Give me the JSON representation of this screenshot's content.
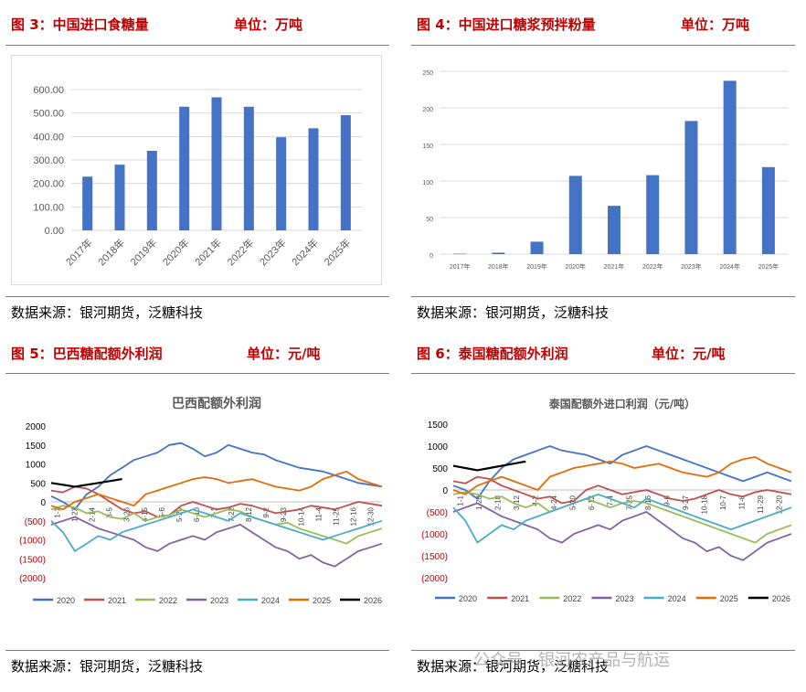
{
  "panels": [
    {
      "fig_label": "图 3：中国进口食糖量",
      "unit": "单位：万吨",
      "source": "数据来源：银河期货，泛糖科技"
    },
    {
      "fig_label": "图 4：中国进口糖浆预拌粉量",
      "unit": "单位：万吨",
      "source": "数据来源：银河期货，泛糖科技"
    },
    {
      "fig_label": "图 5：巴西糖配额外利润",
      "unit": "单位：元/吨",
      "source": "数据来源：银河期货，泛糖科技"
    },
    {
      "fig_label": "图 6：泰国糖配额外利润",
      "unit": "单位：元/吨",
      "source": "数据来源：银河期货，泛糖科技"
    }
  ],
  "watermark": "公众号 · 银河农产品与航运",
  "colors": {
    "bar": "#4472c4",
    "s2020": "#4472c4",
    "s2021": "#c0504d",
    "s2022": "#9bbb59",
    "s2023": "#8064a2",
    "s2024": "#4bacc6",
    "s2025": "#e36c0a",
    "s2026": "#000000"
  },
  "chart_data": [
    {
      "type": "bar",
      "categories": [
        "2017年",
        "2018年",
        "2019年",
        "2020年",
        "2021年",
        "2022年",
        "2023年",
        "2024年",
        "2025年"
      ],
      "values": [
        229,
        280,
        339,
        527,
        567,
        527,
        397,
        435,
        491
      ],
      "ylim": [
        0,
        600
      ],
      "yticks": [
        "0.00",
        "100.00",
        "200.00",
        "300.00",
        "400.00",
        "500.00",
        "600.00"
      ],
      "ytick_values": [
        0,
        100,
        200,
        300,
        400,
        500,
        600
      ]
    },
    {
      "type": "bar",
      "categories": [
        "2017年",
        "2018年",
        "2019年",
        "2020年",
        "2021年",
        "2022年",
        "2023年",
        "2024年",
        "2025年"
      ],
      "values": [
        0.5,
        2,
        17,
        107,
        66,
        108,
        182,
        237,
        119
      ],
      "ylim": [
        0,
        250
      ],
      "yticks": [
        "0",
        "50",
        "100",
        "150",
        "200",
        "250"
      ],
      "ytick_values": [
        0,
        50,
        100,
        150,
        200,
        250
      ]
    },
    {
      "type": "line",
      "title": "巴西配额外利润",
      "ylim": [
        -2000,
        2000
      ],
      "yticks": [
        "2000",
        "1500",
        "1000",
        "500",
        "0",
        "(500)",
        "(1000)",
        "(1500)",
        "(2000)"
      ],
      "ytick_values": [
        2000,
        1500,
        1000,
        500,
        0,
        -500,
        -1000,
        -1500,
        -2000
      ],
      "xticks": [
        "1-1",
        "1-23",
        "2-14",
        "3-5",
        "3-26",
        "4-15",
        "5-6",
        "5-20",
        "6-10",
        "7-1",
        "7-22",
        "8-12",
        "9-2",
        "9-23",
        "10-14",
        "11-4",
        "11-25",
        "12-16",
        "12-30"
      ],
      "series": [
        {
          "name": "2020",
          "color_key": "s2020",
          "values": [
            150,
            0,
            -200,
            200,
            400,
            700,
            900,
            1100,
            1200,
            1300,
            1500,
            1550,
            1400,
            1200,
            1300,
            1500,
            1400,
            1300,
            1250,
            1100,
            1000,
            900,
            850,
            800,
            700,
            600,
            500,
            450,
            400
          ]
        },
        {
          "name": "2021",
          "color_key": "s2021",
          "values": [
            300,
            250,
            400,
            350,
            200,
            0,
            -200,
            -300,
            -250,
            -400,
            -350,
            -100,
            0,
            -100,
            -200,
            -150,
            -50,
            -100,
            -200,
            -300,
            -250,
            -200,
            -100,
            -150,
            -200,
            -100,
            0,
            -50,
            -100
          ]
        },
        {
          "name": "2022",
          "color_key": "s2022",
          "values": [
            -200,
            -100,
            -150,
            -300,
            -250,
            -400,
            -450,
            -300,
            -500,
            -400,
            -350,
            -200,
            -300,
            -400,
            -300,
            -200,
            -250,
            -400,
            -500,
            -600,
            -550,
            -700,
            -800,
            -900,
            -1000,
            -1100,
            -900,
            -800,
            -700
          ]
        },
        {
          "name": "2023",
          "color_key": "s2023",
          "values": [
            -600,
            -500,
            -400,
            -550,
            -700,
            -800,
            -900,
            -1000,
            -1200,
            -1300,
            -1100,
            -1000,
            -900,
            -1000,
            -800,
            -700,
            -600,
            -800,
            -1000,
            -1200,
            -1300,
            -1500,
            -1400,
            -1600,
            -1700,
            -1500,
            -1300,
            -1200,
            -1100
          ]
        },
        {
          "name": "2024",
          "color_key": "s2024",
          "values": [
            -500,
            -800,
            -1300,
            -1100,
            -900,
            -1000,
            -800,
            -700,
            -600,
            -500,
            -400,
            -300,
            -200,
            -300,
            -400,
            -500,
            -300,
            -400,
            -500,
            -600,
            -700,
            -800,
            -900,
            -1000,
            -900,
            -800,
            -700,
            -600,
            -500
          ]
        },
        {
          "name": "2025",
          "color_key": "s2025",
          "values": [
            -100,
            -200,
            0,
            100,
            200,
            100,
            0,
            -100,
            200,
            300,
            400,
            500,
            600,
            650,
            600,
            500,
            550,
            600,
            500,
            400,
            350,
            300,
            400,
            600,
            700,
            800,
            600,
            500,
            400
          ]
        },
        {
          "name": "2026",
          "color_key": "s2026",
          "values": [
            500,
            450,
            400,
            450,
            500,
            550,
            600
          ]
        }
      ]
    },
    {
      "type": "line",
      "title": "泰国配额外进口利润（元/吨）",
      "ylim": [
        -2000,
        1500
      ],
      "yticks": [
        "1500",
        "1000",
        "500",
        "0",
        "(500)",
        "(1000)",
        "(1500)",
        "(2000)"
      ],
      "ytick_values": [
        1500,
        1000,
        500,
        0,
        -500,
        -1000,
        -1500,
        -2000
      ],
      "xticks": [
        "1-1",
        "1-20",
        "2-18",
        "3-12",
        "4-2",
        "4-24",
        "5-20",
        "6-12",
        "7-4",
        "7-25",
        "8-16",
        "9-6",
        "9-27",
        "10-18",
        "10-7",
        "11-8",
        "11-29",
        "12-20"
      ],
      "series": [
        {
          "name": "2020",
          "color_key": "s2020",
          "values": [
            100,
            0,
            -200,
            200,
            500,
            700,
            800,
            900,
            1000,
            900,
            850,
            800,
            700,
            600,
            800,
            900,
            1000,
            900,
            800,
            700,
            600,
            500,
            400,
            300,
            200,
            300,
            400,
            300,
            200
          ]
        },
        {
          "name": "2021",
          "color_key": "s2021",
          "values": [
            200,
            150,
            300,
            250,
            100,
            0,
            -100,
            -200,
            -150,
            -300,
            -250,
            0,
            100,
            0,
            -100,
            -50,
            0,
            -100,
            -200,
            -250,
            -200,
            -100,
            0,
            -100,
            -150,
            -50,
            0,
            -50,
            -100
          ]
        },
        {
          "name": "2022",
          "color_key": "s2022",
          "values": [
            -100,
            -50,
            -100,
            -200,
            -150,
            -300,
            -400,
            -300,
            -500,
            -400,
            -300,
            -200,
            -300,
            -400,
            -300,
            -250,
            -300,
            -400,
            -500,
            -600,
            -700,
            -800,
            -900,
            -1000,
            -1100,
            -1200,
            -1000,
            -900,
            -800
          ]
        },
        {
          "name": "2023",
          "color_key": "s2023",
          "values": [
            -500,
            -400,
            -300,
            -450,
            -600,
            -700,
            -800,
            -900,
            -1100,
            -1200,
            -1000,
            -900,
            -800,
            -900,
            -700,
            -600,
            -500,
            -700,
            -900,
            -1100,
            -1200,
            -1400,
            -1300,
            -1500,
            -1600,
            -1400,
            -1200,
            -1100,
            -1000
          ]
        },
        {
          "name": "2024",
          "color_key": "s2024",
          "values": [
            -400,
            -700,
            -1200,
            -1000,
            -800,
            -900,
            -700,
            -600,
            -500,
            -400,
            -300,
            -200,
            -100,
            -200,
            -300,
            -400,
            -200,
            -300,
            -400,
            -500,
            -600,
            -700,
            -800,
            -900,
            -800,
            -700,
            -600,
            -500,
            -400
          ]
        },
        {
          "name": "2025",
          "color_key": "s2025",
          "values": [
            0,
            -100,
            100,
            200,
            300,
            200,
            100,
            0,
            300,
            400,
            500,
            550,
            600,
            650,
            600,
            500,
            550,
            600,
            500,
            400,
            350,
            300,
            400,
            600,
            700,
            750,
            600,
            500,
            400
          ]
        },
        {
          "name": "2026",
          "color_key": "s2026",
          "values": [
            550,
            500,
            450,
            500,
            550,
            600,
            650
          ]
        }
      ]
    }
  ]
}
